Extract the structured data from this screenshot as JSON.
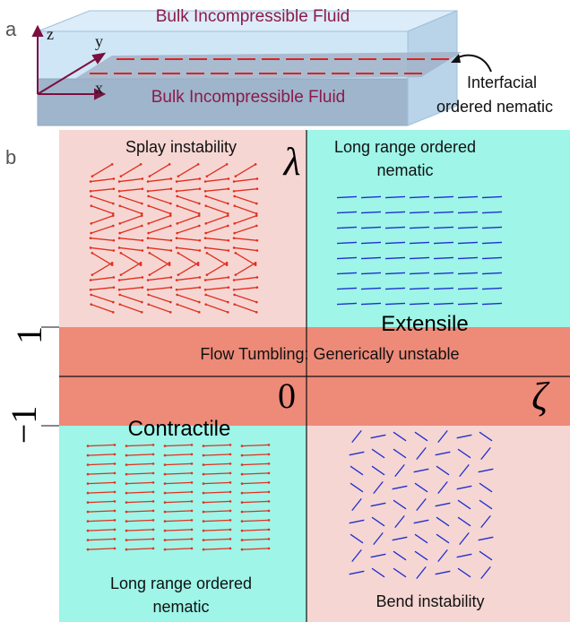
{
  "panel_a": {
    "label": "a",
    "axes": {
      "z": "z",
      "y": "y",
      "x": "x"
    },
    "top_fluid": "Bulk Incompressible Fluid",
    "bottom_fluid": "Bulk Incompressible Fluid",
    "interface_label": [
      "Interfacial",
      "ordered nematic"
    ]
  },
  "panel_b": {
    "label": "b",
    "lambda": "λ",
    "zeta": "ζ",
    "zero": "0",
    "one": "1",
    "minus_one": "−1",
    "top_left": "Splay instability",
    "top_right": [
      "Long range ordered",
      "nematic"
    ],
    "extensile": "Extensile",
    "flow_tumbling": "Flow Tumbling: Generically unstable",
    "contractile": "Contractile",
    "bottom_left": [
      "Long range ordered",
      "nematic"
    ],
    "bottom_right": "Bend instability"
  }
}
